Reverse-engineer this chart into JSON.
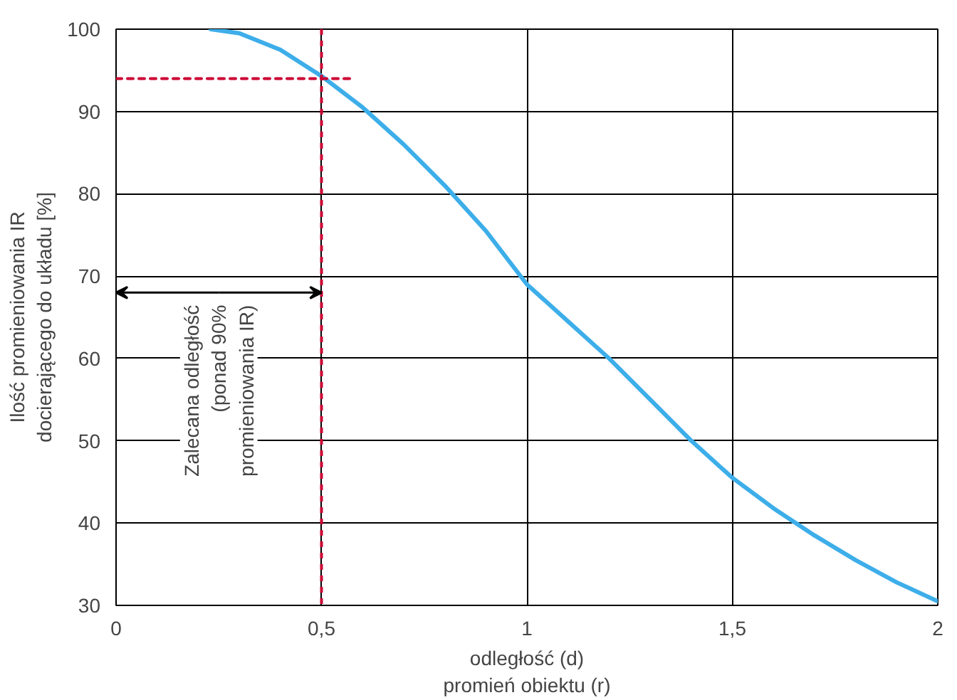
{
  "chart_data": {
    "type": "line",
    "xlabel": "odległość (d)\npromień obiektu (r)",
    "ylabel": "Ilość promieniowania IR\ndocierającego do układu [%]",
    "xlim": [
      0,
      2
    ],
    "ylim": [
      30,
      100
    ],
    "xticks": [
      0,
      {
        "value": 0.5,
        "label": "0,5"
      },
      1,
      {
        "value": 1.5,
        "label": "1,5"
      },
      2
    ],
    "yticks": [
      30,
      40,
      50,
      60,
      70,
      80,
      90,
      100
    ],
    "grid": true,
    "line_style": "solid",
    "series": [
      {
        "color": "#3daee9",
        "x": [
          0.23,
          0.3,
          0.4,
          0.5,
          0.6,
          0.7,
          0.8,
          0.9,
          1.0,
          1.1,
          1.2,
          1.3,
          1.4,
          1.5,
          1.6,
          1.7,
          1.8,
          1.9,
          2.0
        ],
        "values": [
          100,
          99.5,
          97.5,
          94.3,
          90.5,
          86,
          81,
          75.5,
          69,
          64.5,
          60,
          55,
          50,
          45.5,
          41.8,
          38.5,
          35.5,
          32.8,
          30.5
        ]
      },
      {
        "color": "#cc0033",
        "line_style": "dashed",
        "x": [
          0,
          0.57
        ],
        "values": [
          94,
          94
        ]
      }
    ],
    "ref_lines": [
      {
        "axis": "x",
        "value": 0.5,
        "color": "#cc0033",
        "line_style": "dashed"
      }
    ],
    "annotations": [
      {
        "text": "Zalecana odległość\n(ponad 90%\npromieniowania IR)",
        "x": 0.5,
        "y": 68
      }
    ]
  }
}
